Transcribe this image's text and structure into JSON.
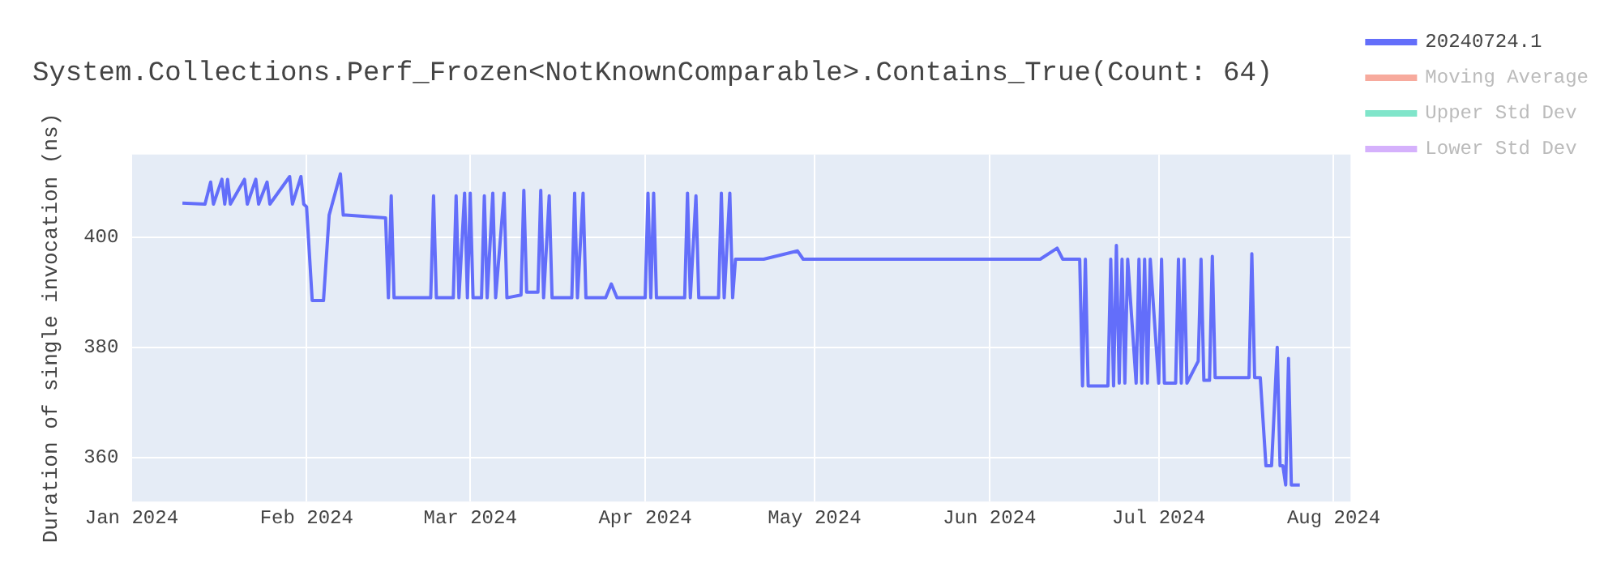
{
  "chart_data": {
    "type": "line",
    "title": "System.Collections.Perf_Frozen<NotKnownComparable>.Contains_True(Count: 64)",
    "ylabel": "Duration of single invocation (ns)",
    "xlim": [
      "2024-01-01",
      "2024-08-04"
    ],
    "xticks": [
      {
        "value": "2024-01-01",
        "label": "Jan 2024"
      },
      {
        "value": "2024-02-01",
        "label": "Feb 2024"
      },
      {
        "value": "2024-03-01",
        "label": "Mar 2024"
      },
      {
        "value": "2024-04-01",
        "label": "Apr 2024"
      },
      {
        "value": "2024-05-01",
        "label": "May 2024"
      },
      {
        "value": "2024-06-01",
        "label": "Jun 2024"
      },
      {
        "value": "2024-07-01",
        "label": "Jul 2024"
      },
      {
        "value": "2024-08-01",
        "label": "Aug 2024"
      }
    ],
    "ylim": [
      352,
      415
    ],
    "yticks": [
      360,
      380,
      400
    ],
    "grid": true,
    "legend": "top right",
    "marker": "none",
    "line_style": "solid",
    "series": [
      {
        "name": "20240724.1",
        "color": "#636efa",
        "x": [
          "2024-01-10",
          "2024-01-14",
          "2024-01-15",
          "2024-01-15T12:00",
          "2024-01-17",
          "2024-01-17T12:00",
          "2024-01-18",
          "2024-01-18T12:00",
          "2024-01-21",
          "2024-01-21T12:00",
          "2024-01-23",
          "2024-01-23T12:00",
          "2024-01-25",
          "2024-01-25T12:00",
          "2024-01-29",
          "2024-01-29T12:00",
          "2024-01-31",
          "2024-01-31T12:00",
          "2024-02-01",
          "2024-02-02",
          "2024-02-04",
          "2024-02-05",
          "2024-02-07",
          "2024-02-07T12:00",
          "2024-02-08",
          "2024-02-15",
          "2024-02-15T12:00",
          "2024-02-16",
          "2024-02-16T12:00",
          "2024-02-23",
          "2024-02-23T12:00",
          "2024-02-24",
          "2024-02-27",
          "2024-02-27T12:00",
          "2024-02-28",
          "2024-02-29",
          "2024-02-29T12:00",
          "2024-03-01",
          "2024-03-01T12:00",
          "2024-03-03",
          "2024-03-03T12:00",
          "2024-03-04",
          "2024-03-05",
          "2024-03-05T12:00",
          "2024-03-07",
          "2024-03-07T12:00",
          "2024-03-10",
          "2024-03-10T12:00",
          "2024-03-11",
          "2024-03-13",
          "2024-03-13T12:00",
          "2024-03-14",
          "2024-03-15",
          "2024-03-15T12:00",
          "2024-03-19",
          "2024-03-19T12:00",
          "2024-03-20",
          "2024-03-21",
          "2024-03-21T12:00",
          "2024-03-25",
          "2024-03-26",
          "2024-03-27",
          "2024-04-01",
          "2024-04-01T12:00",
          "2024-04-02",
          "2024-04-02T12:00",
          "2024-04-03",
          "2024-04-08",
          "2024-04-08T12:00",
          "2024-04-09",
          "2024-04-10",
          "2024-04-10T12:00",
          "2024-04-14",
          "2024-04-14T12:00",
          "2024-04-15",
          "2024-04-16",
          "2024-04-16T12:00",
          "2024-04-17",
          "2024-04-22",
          "2024-04-28",
          "2024-04-29",
          "2024-05-10",
          "2024-05-20",
          "2024-06-01",
          "2024-06-10",
          "2024-06-13",
          "2024-06-14",
          "2024-06-17",
          "2024-06-17T12:00",
          "2024-06-18",
          "2024-06-18T12:00",
          "2024-06-22",
          "2024-06-22T12:00",
          "2024-06-23",
          "2024-06-23T12:00",
          "2024-06-24",
          "2024-06-24T12:00",
          "2024-06-25",
          "2024-06-25T12:00",
          "2024-06-27",
          "2024-06-27T12:00",
          "2024-06-28",
          "2024-06-28T12:00",
          "2024-06-29",
          "2024-06-29T12:00",
          "2024-07-01",
          "2024-07-01T12:00",
          "2024-07-02",
          "2024-07-04",
          "2024-07-04T12:00",
          "2024-07-05",
          "2024-07-05T12:00",
          "2024-07-06",
          "2024-07-08",
          "2024-07-08T12:00",
          "2024-07-09",
          "2024-07-10",
          "2024-07-10T12:00",
          "2024-07-11",
          "2024-07-17",
          "2024-07-17T12:00",
          "2024-07-18",
          "2024-07-19",
          "2024-07-20",
          "2024-07-21",
          "2024-07-22",
          "2024-07-22T12:00",
          "2024-07-23",
          "2024-07-23T12:00",
          "2024-07-24",
          "2024-07-24T12:00",
          "2024-07-26"
        ],
        "values": [
          406.2,
          406,
          410,
          406,
          410.5,
          406,
          410.5,
          406,
          410.5,
          406,
          410.5,
          406,
          410,
          406,
          411,
          406,
          411,
          406,
          405.5,
          388.5,
          388.5,
          404,
          411.5,
          404,
          404,
          403.5,
          389,
          407.5,
          389,
          389,
          407.5,
          389,
          389,
          407.5,
          389,
          408,
          389,
          408,
          389,
          389,
          407.5,
          389,
          408,
          389,
          408,
          389,
          389.5,
          408.5,
          390,
          390,
          408.5,
          389,
          407.5,
          389,
          389,
          408,
          389,
          408,
          389,
          389,
          391.5,
          389,
          389,
          408,
          389,
          408,
          389,
          389,
          408,
          389,
          407.5,
          389,
          389,
          408,
          389,
          408,
          389,
          396,
          396,
          397.5,
          396,
          396,
          396,
          396,
          396,
          398,
          396,
          396,
          373,
          396,
          373,
          373,
          396,
          373,
          398.5,
          373.5,
          396,
          373.5,
          396,
          373.5,
          396,
          373.5,
          396,
          373.5,
          396,
          373.5,
          396,
          373.5,
          373.5,
          396,
          373.5,
          396,
          373.5,
          377.5,
          396,
          374,
          374,
          396.5,
          374.5,
          374.5,
          397,
          374.5,
          374.5,
          358.5,
          358.5,
          380,
          358.5,
          358.5,
          355,
          378,
          355,
          355
        ]
      },
      {
        "name": "Moving Average",
        "color": "#f7aa9d"
      },
      {
        "name": "Upper Std Dev",
        "color": "#80e5ca"
      },
      {
        "name": "Lower Std Dev",
        "color": "#d5b1fc"
      }
    ]
  }
}
